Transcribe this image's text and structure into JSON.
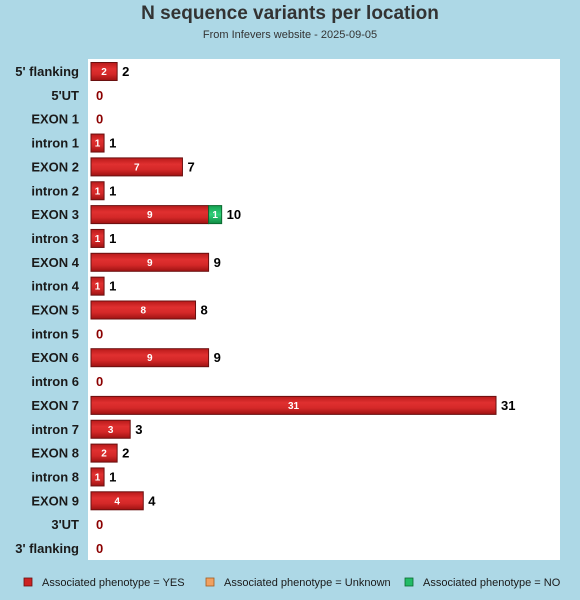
{
  "chart_data": {
    "type": "bar",
    "orientation": "horizontal",
    "stacked": true,
    "title": "N sequence variants per location",
    "subtitle": "From Infevers website - 2025-09-05",
    "categories": [
      "5' flanking",
      "5'UT",
      "EXON 1",
      "intron 1",
      "EXON 2",
      "intron 2",
      "EXON 3",
      "intron 3",
      "EXON 4",
      "intron 4",
      "EXON 5",
      "intron 5",
      "EXON 6",
      "intron 6",
      "EXON 7",
      "intron 7",
      "EXON 8",
      "intron 8",
      "EXON 9",
      "3'UT",
      "3' flanking"
    ],
    "series": [
      {
        "name": "Associated phenotype = YES",
        "color": "#cc2222",
        "values": [
          2,
          0,
          0,
          1,
          7,
          1,
          9,
          1,
          9,
          1,
          8,
          0,
          9,
          0,
          31,
          3,
          2,
          1,
          4,
          0,
          0
        ]
      },
      {
        "name": "Associated phenotype = Unknown",
        "color": "#f0a060",
        "values": [
          0,
          0,
          0,
          0,
          0,
          0,
          0,
          0,
          0,
          0,
          0,
          0,
          0,
          0,
          0,
          0,
          0,
          0,
          0,
          0,
          0
        ]
      },
      {
        "name": "Associated phenotype = NO",
        "color": "#22bb66",
        "values": [
          0,
          0,
          0,
          0,
          0,
          0,
          1,
          0,
          0,
          0,
          0,
          0,
          0,
          0,
          0,
          0,
          0,
          0,
          0,
          0,
          0
        ]
      }
    ],
    "totals": [
      2,
      0,
      0,
      1,
      7,
      1,
      10,
      1,
      9,
      1,
      8,
      0,
      9,
      0,
      31,
      3,
      2,
      1,
      4,
      0,
      0
    ],
    "xlim": [
      0,
      36
    ],
    "grid": false,
    "legend_position": "bottom"
  }
}
